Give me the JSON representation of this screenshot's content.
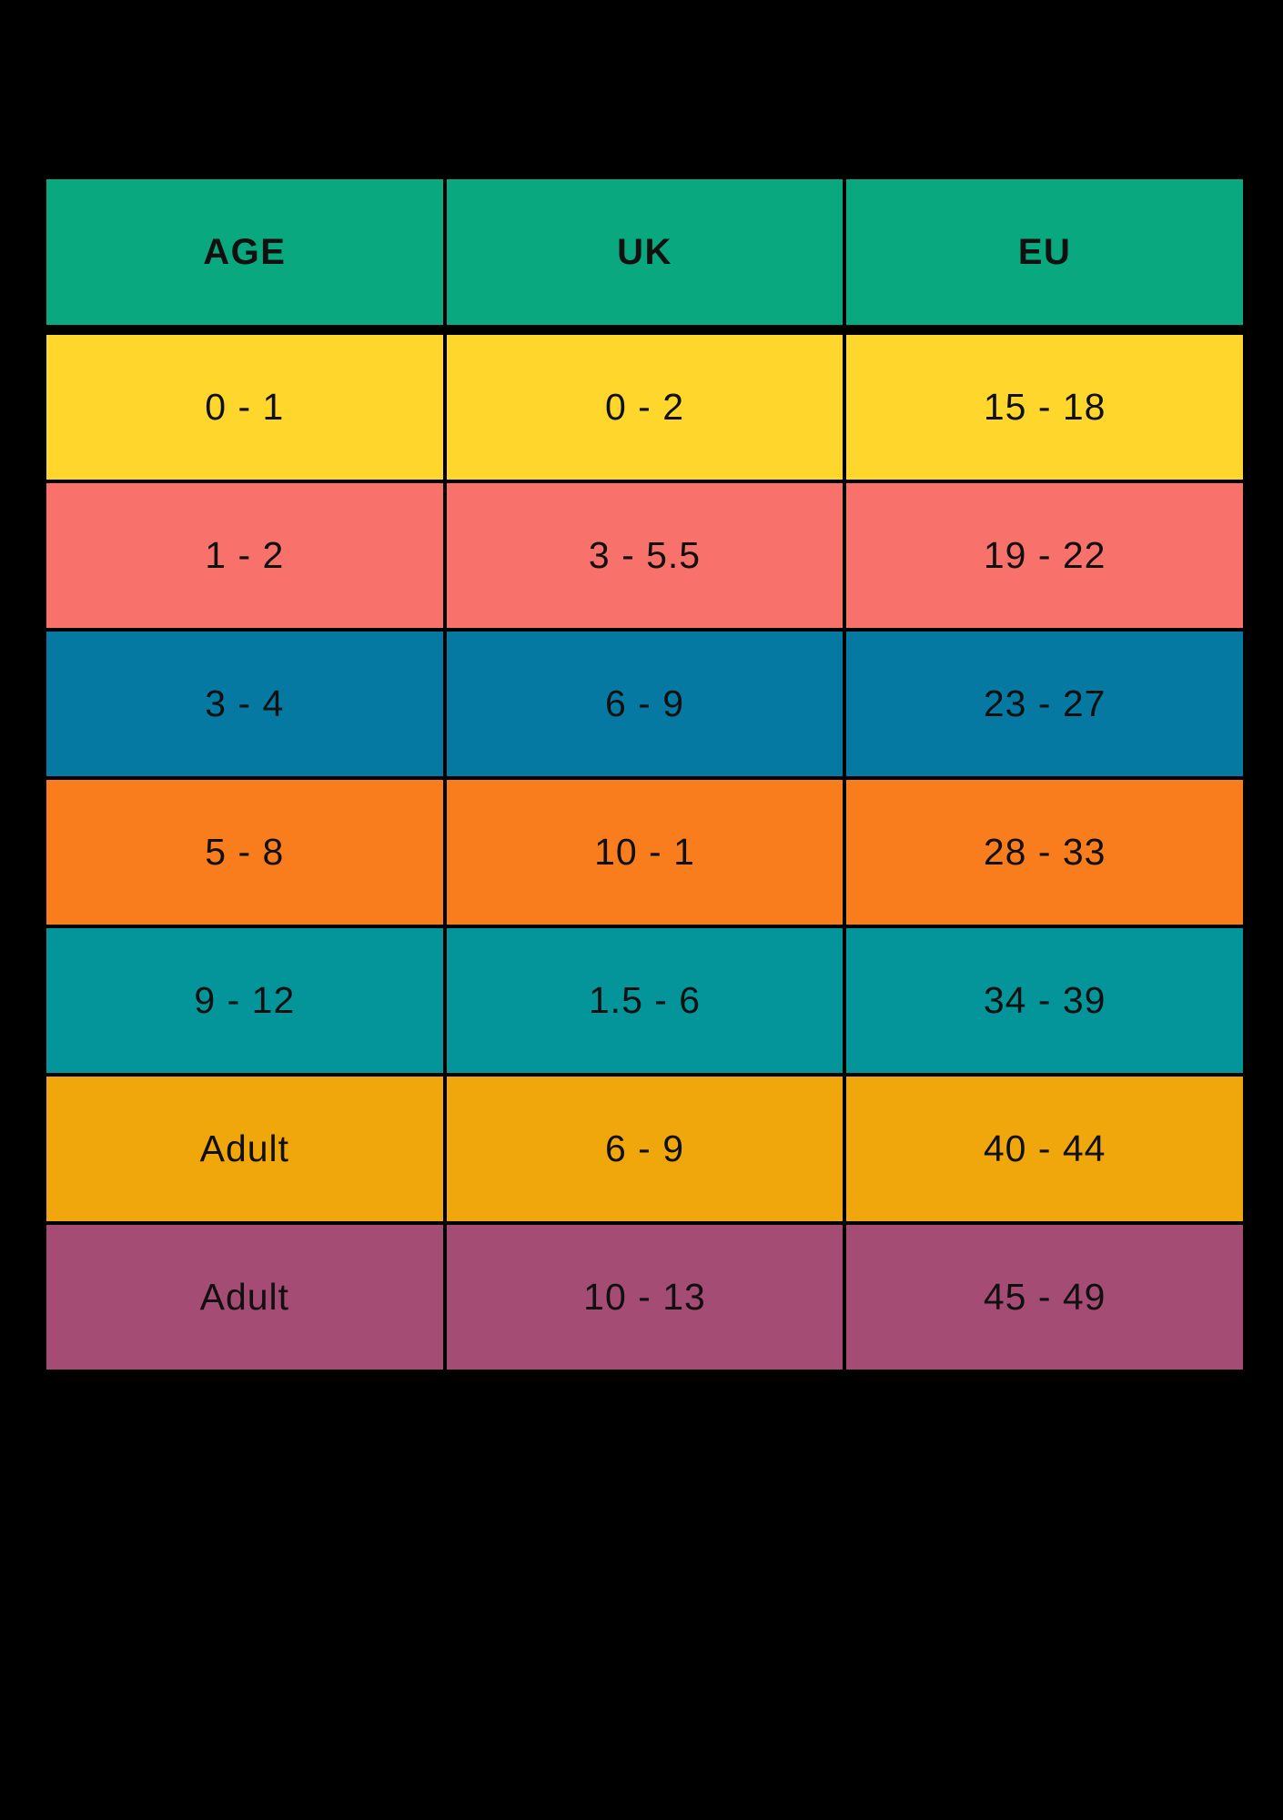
{
  "background_color": "#000000",
  "text_color": "#101010",
  "table": {
    "header": {
      "bg": "#0AA87E",
      "columns": [
        "AGE",
        "UK",
        "EU"
      ]
    },
    "rows": [
      {
        "bg": "#FFD62B",
        "age": "0 - 1",
        "uk": "0 - 2",
        "eu": "15 - 18"
      },
      {
        "bg": "#F9716B",
        "age": "1 - 2",
        "uk": "3 - 5.5",
        "eu": "19 - 22"
      },
      {
        "bg": "#0579A2",
        "age": "3 - 4",
        "uk": "6 - 9",
        "eu": "23 - 27"
      },
      {
        "bg": "#FA7D1D",
        "age": "5 - 8",
        "uk": "10 - 1",
        "eu": "28 - 33"
      },
      {
        "bg": "#039599",
        "age": "9 - 12",
        "uk": "1.5 - 6",
        "eu": "34 - 39"
      },
      {
        "bg": "#F0A70B",
        "age": "Adult",
        "uk": "6 - 9",
        "eu": "40 - 44"
      },
      {
        "bg": "#A54C75",
        "age": "Adult",
        "uk": "10 - 13",
        "eu": "45 - 49"
      }
    ]
  },
  "chart_data": {
    "type": "table",
    "title": "",
    "columns": [
      "AGE",
      "UK",
      "EU"
    ],
    "rows": [
      [
        "0 - 1",
        "0 - 2",
        "15 - 18"
      ],
      [
        "1 - 2",
        "3 - 5.5",
        "19 - 22"
      ],
      [
        "3 - 4",
        "6 - 9",
        "23 - 27"
      ],
      [
        "5 - 8",
        "10 - 1",
        "28 - 33"
      ],
      [
        "9 - 12",
        "1.5 - 6",
        "34 - 39"
      ],
      [
        "Adult",
        "6 - 9",
        "40 - 44"
      ],
      [
        "Adult",
        "10 - 13",
        "45 - 49"
      ]
    ],
    "row_colors": [
      "#FFD62B",
      "#F9716B",
      "#0579A2",
      "#FA7D1D",
      "#039599",
      "#F0A70B",
      "#A54C75"
    ],
    "header_color": "#0AA87E",
    "layout": "grid with black gaps on black background"
  }
}
